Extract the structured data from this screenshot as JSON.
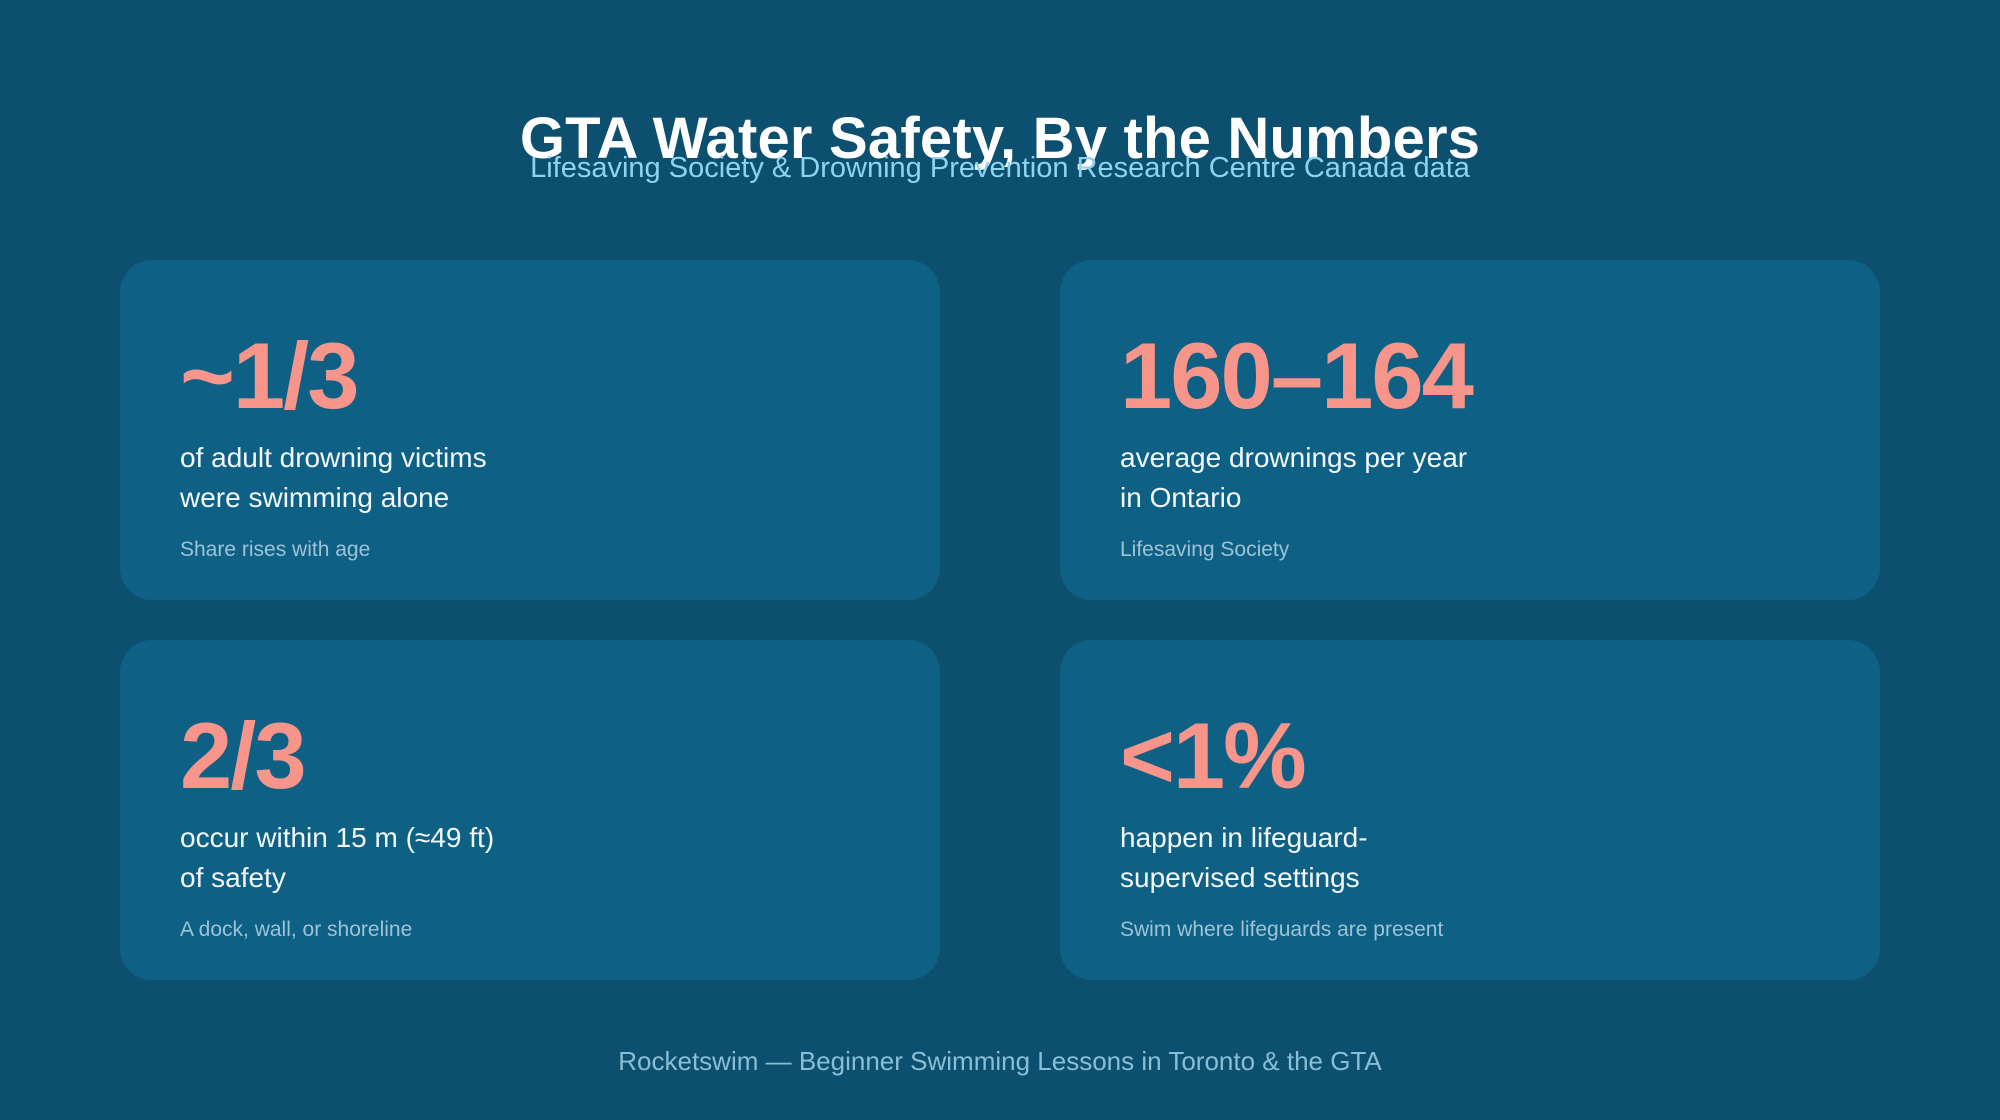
{
  "header": {
    "title": "GTA Water Safety, By the Numbers",
    "subtitle": "Lifesaving Society & Drowning Prevention Research Centre Canada data"
  },
  "cards": [
    {
      "stat": "~1/3",
      "desc_line1": "of adult drowning victims",
      "desc_line2": "were swimming alone",
      "note": "Share rises with age"
    },
    {
      "stat": "160–164",
      "desc_line1": "average drownings per year",
      "desc_line2": "in Ontario",
      "note": "Lifesaving Society"
    },
    {
      "stat": "2/3",
      "desc_line1": "occur within 15 m (≈49 ft)",
      "desc_line2": "of safety",
      "note": "A dock, wall, or shoreline"
    },
    {
      "stat": "<1%",
      "desc_line1": "happen in lifeguard-",
      "desc_line2": "supervised settings",
      "note": "Swim where lifeguards are present"
    }
  ],
  "footer": {
    "text": "Rocketswim — Beginner Swimming Lessons in Toronto & the GTA"
  },
  "colors": {
    "background": "#0d4f6e",
    "card": "#0f6085",
    "accent": "#f7958a",
    "subtitle": "#8fd3ef"
  }
}
